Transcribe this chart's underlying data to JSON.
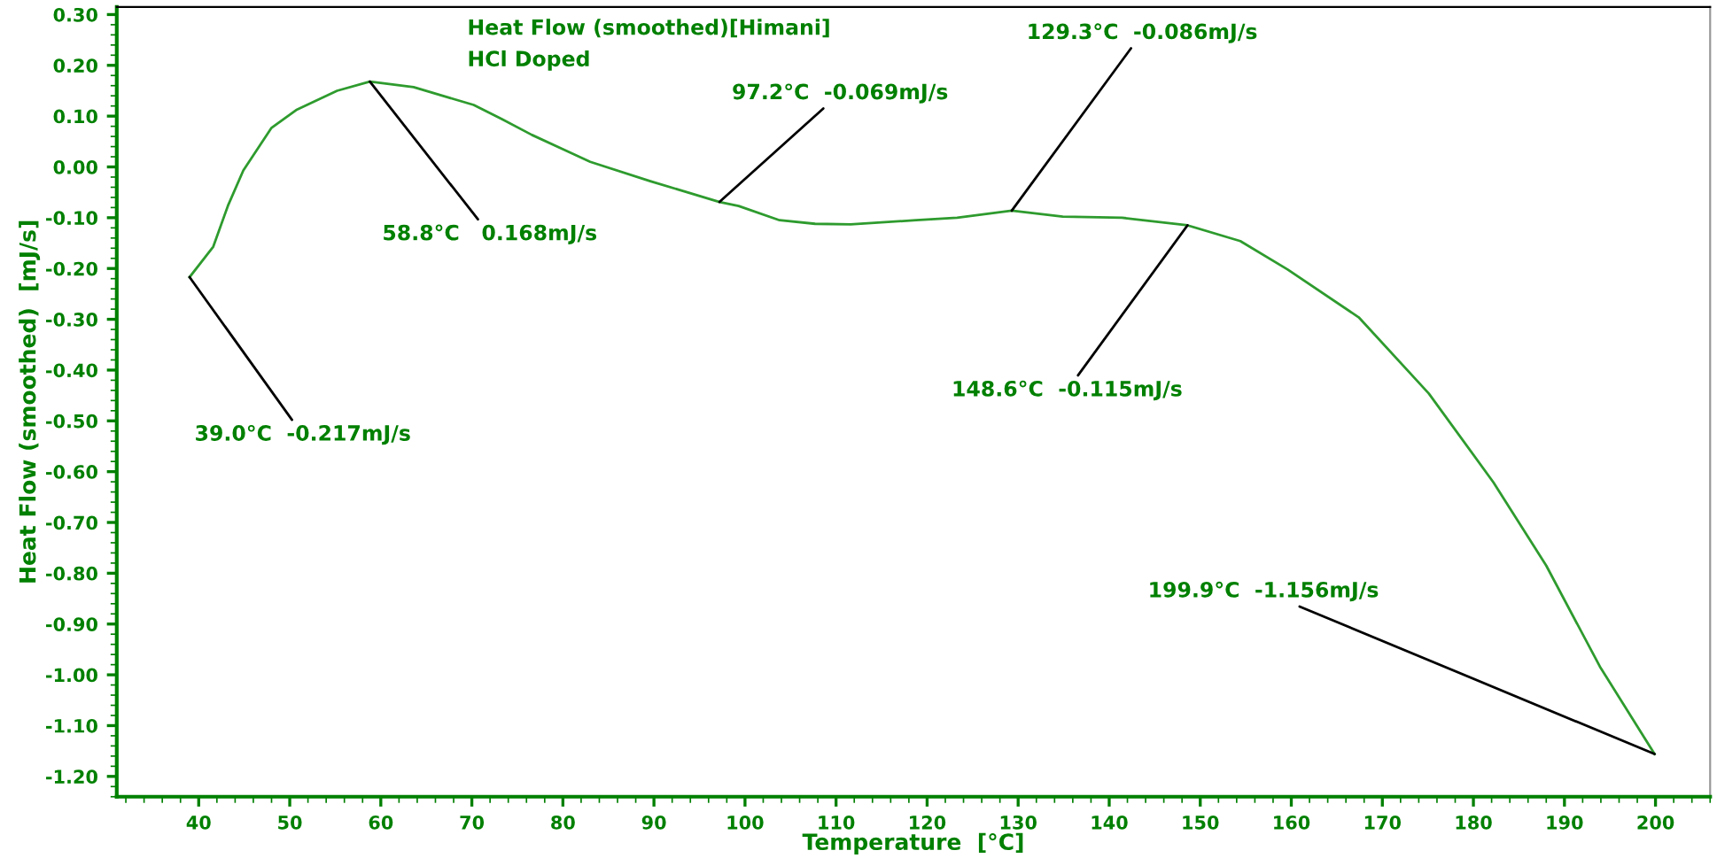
{
  "chart_data": {
    "type": "line",
    "title": "Heat Flow (smoothed)[Himani]",
    "subtitle": "HCl Doped",
    "xlabel": "Temperature  [°C]",
    "ylabel": "Heat Flow (smoothed)  [mJ/s]",
    "series": [
      {
        "color": "#2e9b2e",
        "x": [
          39.0,
          41.6,
          43.2,
          44.9,
          48.0,
          50.7,
          55.2,
          58.8,
          63.6,
          70.2,
          73.3,
          76.6,
          80.0,
          83.0,
          89.6,
          97.2,
          99.3,
          103.8,
          107.7,
          111.6,
          118.8,
          123.3,
          129.3,
          134.9,
          141.4,
          148.6,
          154.4,
          159.6,
          167.4,
          175.1,
          182.2,
          188.0,
          193.9,
          199.9
        ],
        "values": [
          -0.217,
          -0.157,
          -0.077,
          -0.007,
          0.077,
          0.112,
          0.15,
          0.168,
          0.157,
          0.122,
          0.094,
          0.063,
          0.035,
          0.01,
          -0.028,
          -0.069,
          -0.077,
          -0.105,
          -0.112,
          -0.113,
          -0.105,
          -0.1,
          -0.086,
          -0.098,
          -0.1,
          -0.115,
          -0.146,
          -0.202,
          -0.296,
          -0.446,
          -0.621,
          -0.785,
          -0.984,
          -1.156
        ]
      }
    ],
    "annotations": [
      {
        "text": "39.0°C  -0.217mJ/s",
        "x": 39.0,
        "y": -0.217
      },
      {
        "text": "58.8°C   0.168mJ/s",
        "x": 58.8,
        "y": 0.168
      },
      {
        "text": "97.2°C  -0.069mJ/s",
        "x": 97.2,
        "y": -0.069
      },
      {
        "text": "129.3°C  -0.086mJ/s",
        "x": 129.3,
        "y": -0.086
      },
      {
        "text": "148.6°C  -0.115mJ/s",
        "x": 148.6,
        "y": -0.115
      },
      {
        "text": "199.9°C  -1.156mJ/s",
        "x": 199.9,
        "y": -1.156
      }
    ],
    "xlim": [
      31,
      206
    ],
    "ylim": [
      -1.24,
      0.315
    ],
    "xticks": [
      40,
      50,
      60,
      70,
      80,
      90,
      100,
      110,
      120,
      130,
      140,
      150,
      160,
      170,
      180,
      190,
      200
    ],
    "yticks": [
      {
        "value": 0.3,
        "label": "0.30"
      },
      {
        "value": 0.2,
        "label": "0.20"
      },
      {
        "value": 0.1,
        "label": "0.10"
      },
      {
        "value": 0.0,
        "label": "0.00"
      },
      {
        "value": -0.1,
        "label": "-0.10"
      },
      {
        "value": -0.2,
        "label": "-0.20"
      },
      {
        "value": -0.3,
        "label": "-0.30"
      },
      {
        "value": -0.4,
        "label": "-0.40"
      },
      {
        "value": -0.5,
        "label": "-0.50"
      },
      {
        "value": -0.6,
        "label": "-0.60"
      },
      {
        "value": -0.7,
        "label": "-0.70"
      },
      {
        "value": -0.8,
        "label": "-0.80"
      },
      {
        "value": -0.9,
        "label": "-0.90"
      },
      {
        "value": -1.0,
        "label": "-1.00"
      },
      {
        "value": -1.1,
        "label": "-1.10"
      },
      {
        "value": -1.2,
        "label": "-1.20"
      }
    ],
    "grid": false,
    "legend": false,
    "marker": "none",
    "line_style": "solid"
  }
}
